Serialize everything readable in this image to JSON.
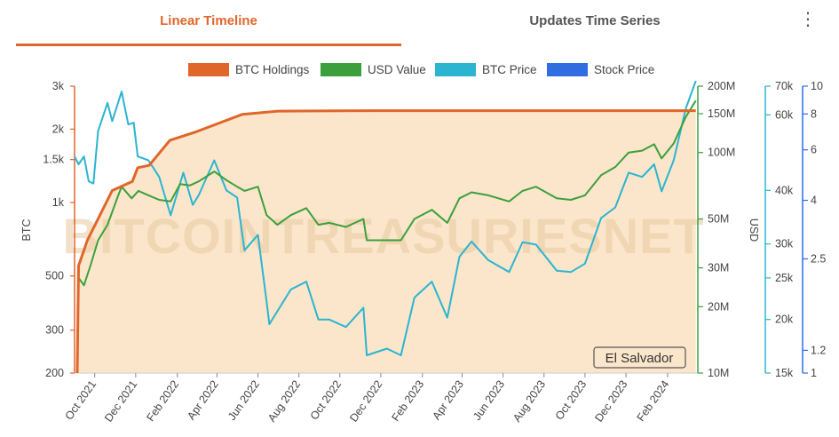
{
  "tabs": [
    {
      "label": "Linear Timeline",
      "active": true
    },
    {
      "label": "Updates Time Series",
      "active": false
    }
  ],
  "menu_icon": "more-vertical-icon",
  "watermark": "BITCOINTREASURIESNET",
  "entity_label": "El Salvador",
  "colors": {
    "btc_holdings": "#e0662a",
    "usd_value": "#3ba03c",
    "btc_price": "#2bb5d0",
    "stock_price": "#2f6de0",
    "fill": "#fbe6cc"
  },
  "chart_data": {
    "type": "line",
    "title": "",
    "legend_position": "top",
    "legend": [
      {
        "name": "BTC Holdings",
        "color": "#e0662a"
      },
      {
        "name": "USD Value",
        "color": "#3ba03c"
      },
      {
        "name": "BTC Price",
        "color": "#2bb5d0"
      },
      {
        "name": "Stock Price",
        "color": "#2f6de0"
      }
    ],
    "x_tick_labels": [
      "Oct 2021",
      "Dec 2021",
      "Feb 2022",
      "Apr 2022",
      "Jun 2022",
      "Aug 2022",
      "Oct 2022",
      "Dec 2022",
      "Feb 2023",
      "Apr 2023",
      "Jun 2023",
      "Aug 2023",
      "Oct 2023",
      "Dec 2023",
      "Feb 2024"
    ],
    "x_range": [
      "2021-09-01",
      "2024-03-17"
    ],
    "axes": {
      "btc": {
        "label": "BTC",
        "scale": "log",
        "range": [
          200,
          3000
        ],
        "ticks": [
          {
            "v": 200,
            "t": "200"
          },
          {
            "v": 300,
            "t": "300"
          },
          {
            "v": 500,
            "t": "500"
          },
          {
            "v": 1000,
            "t": "1k"
          },
          {
            "v": 1500,
            "t": "1.5k"
          },
          {
            "v": 2000,
            "t": "2k"
          },
          {
            "v": 3000,
            "t": "3k"
          }
        ]
      },
      "usd": {
        "label": "USD",
        "scale": "log",
        "range": [
          10000000,
          200000000
        ],
        "ticks": [
          {
            "v": 10000000,
            "t": "10M"
          },
          {
            "v": 20000000,
            "t": "20M"
          },
          {
            "v": 30000000,
            "t": "30M"
          },
          {
            "v": 50000000,
            "t": "50M"
          },
          {
            "v": 100000000,
            "t": "100M"
          },
          {
            "v": 150000000,
            "t": "150M"
          },
          {
            "v": 200000000,
            "t": "200M"
          }
        ]
      },
      "btc_price": {
        "scale": "log",
        "range": [
          15000,
          70000
        ],
        "ticks": [
          {
            "v": 15000,
            "t": "15k"
          },
          {
            "v": 20000,
            "t": "20k"
          },
          {
            "v": 25000,
            "t": "25k"
          },
          {
            "v": 30000,
            "t": "30k"
          },
          {
            "v": 40000,
            "t": "40k"
          },
          {
            "v": 60000,
            "t": "60k"
          },
          {
            "v": 70000,
            "t": "70k"
          }
        ]
      },
      "stock_price": {
        "scale": "log",
        "range": [
          1,
          10
        ],
        "ticks": [
          {
            "v": 1,
            "t": "1"
          },
          {
            "v": 1.2,
            "t": "1.2"
          },
          {
            "v": 2.5,
            "t": "2.5"
          },
          {
            "v": 4,
            "t": "4"
          },
          {
            "v": 6,
            "t": "6"
          },
          {
            "v": 8,
            "t": "8"
          },
          {
            "v": 10,
            "t": "10"
          }
        ]
      }
    },
    "series": [
      {
        "name": "BTC Holdings",
        "axis": "btc",
        "points": [
          [
            "2021-09-05",
            200
          ],
          [
            "2021-09-07",
            550
          ],
          [
            "2021-09-20",
            700
          ],
          [
            "2021-10-27",
            1120
          ],
          [
            "2021-11-26",
            1220
          ],
          [
            "2021-12-04",
            1390
          ],
          [
            "2021-12-21",
            1420
          ],
          [
            "2022-01-21",
            1800
          ],
          [
            "2022-03-01",
            1950
          ],
          [
            "2022-05-09",
            2300
          ],
          [
            "2022-07-01",
            2370
          ],
          [
            "2022-11-17",
            2380
          ],
          [
            "2023-06-01",
            2381
          ],
          [
            "2024-03-14",
            2381
          ]
        ]
      },
      {
        "name": "USD Value",
        "axis": "usd",
        "points": [
          [
            "2021-09-07",
            27000000
          ],
          [
            "2021-09-15",
            25000000
          ],
          [
            "2021-09-25",
            31000000
          ],
          [
            "2021-10-06",
            40000000
          ],
          [
            "2021-10-20",
            47000000
          ],
          [
            "2021-11-05",
            64000000
          ],
          [
            "2021-11-10",
            70000000
          ],
          [
            "2021-11-25",
            62000000
          ],
          [
            "2021-12-05",
            67000000
          ],
          [
            "2021-12-20",
            64000000
          ],
          [
            "2022-01-05",
            61000000
          ],
          [
            "2022-01-22",
            60000000
          ],
          [
            "2022-02-05",
            72000000
          ],
          [
            "2022-02-20",
            71000000
          ],
          [
            "2022-03-05",
            74000000
          ],
          [
            "2022-03-28",
            82000000
          ],
          [
            "2022-04-15",
            75000000
          ],
          [
            "2022-05-01",
            70000000
          ],
          [
            "2022-05-12",
            67000000
          ],
          [
            "2022-06-01",
            70000000
          ],
          [
            "2022-06-14",
            52000000
          ],
          [
            "2022-06-30",
            47000000
          ],
          [
            "2022-07-20",
            52000000
          ],
          [
            "2022-08-12",
            56000000
          ],
          [
            "2022-08-30",
            47000000
          ],
          [
            "2022-09-15",
            48000000
          ],
          [
            "2022-10-10",
            46000000
          ],
          [
            "2022-11-05",
            50000000
          ],
          [
            "2022-11-10",
            40000000
          ],
          [
            "2022-12-10",
            40000000
          ],
          [
            "2022-12-31",
            40000000
          ],
          [
            "2023-01-20",
            50000000
          ],
          [
            "2023-02-15",
            55000000
          ],
          [
            "2023-03-10",
            48000000
          ],
          [
            "2023-03-28",
            62000000
          ],
          [
            "2023-04-15",
            66000000
          ],
          [
            "2023-05-10",
            64000000
          ],
          [
            "2023-06-10",
            60000000
          ],
          [
            "2023-06-30",
            67000000
          ],
          [
            "2023-07-20",
            70000000
          ],
          [
            "2023-08-20",
            62000000
          ],
          [
            "2023-09-10",
            61000000
          ],
          [
            "2023-10-01",
            64000000
          ],
          [
            "2023-10-25",
            79000000
          ],
          [
            "2023-11-15",
            86000000
          ],
          [
            "2023-12-05",
            100000000
          ],
          [
            "2023-12-25",
            102000000
          ],
          [
            "2024-01-12",
            109000000
          ],
          [
            "2024-01-23",
            94000000
          ],
          [
            "2024-02-10",
            110000000
          ],
          [
            "2024-02-28",
            145000000
          ],
          [
            "2024-03-14",
            172000000
          ]
        ]
      },
      {
        "name": "BTC Price",
        "axis": "btc_price",
        "points": [
          [
            "2021-09-01",
            48000
          ],
          [
            "2021-09-07",
            46000
          ],
          [
            "2021-09-15",
            48000
          ],
          [
            "2021-09-22",
            42000
          ],
          [
            "2021-09-29",
            41500
          ],
          [
            "2021-10-06",
            55000
          ],
          [
            "2021-10-20",
            64000
          ],
          [
            "2021-10-27",
            58000
          ],
          [
            "2021-11-10",
            68000
          ],
          [
            "2021-11-20",
            57000
          ],
          [
            "2021-11-28",
            57500
          ],
          [
            "2021-12-04",
            48000
          ],
          [
            "2021-12-20",
            47000
          ],
          [
            "2022-01-05",
            43000
          ],
          [
            "2022-01-22",
            35000
          ],
          [
            "2022-02-10",
            44000
          ],
          [
            "2022-02-24",
            37000
          ],
          [
            "2022-03-05",
            39000
          ],
          [
            "2022-03-28",
            47000
          ],
          [
            "2022-04-15",
            40000
          ],
          [
            "2022-05-01",
            38500
          ],
          [
            "2022-05-12",
            29000
          ],
          [
            "2022-06-01",
            31500
          ],
          [
            "2022-06-14",
            22000
          ],
          [
            "2022-06-18",
            19500
          ],
          [
            "2022-07-20",
            23500
          ],
          [
            "2022-08-12",
            24500
          ],
          [
            "2022-08-30",
            20000
          ],
          [
            "2022-09-15",
            20000
          ],
          [
            "2022-10-10",
            19200
          ],
          [
            "2022-11-05",
            21300
          ],
          [
            "2022-11-10",
            16500
          ],
          [
            "2022-12-10",
            17100
          ],
          [
            "2022-12-31",
            16500
          ],
          [
            "2023-01-20",
            22500
          ],
          [
            "2023-02-15",
            24500
          ],
          [
            "2023-03-10",
            20200
          ],
          [
            "2023-03-28",
            28000
          ],
          [
            "2023-04-15",
            30400
          ],
          [
            "2023-05-10",
            27500
          ],
          [
            "2023-06-10",
            25800
          ],
          [
            "2023-06-30",
            30300
          ],
          [
            "2023-07-20",
            29900
          ],
          [
            "2023-08-20",
            26000
          ],
          [
            "2023-09-10",
            25800
          ],
          [
            "2023-10-01",
            27000
          ],
          [
            "2023-10-25",
            34500
          ],
          [
            "2023-11-15",
            36500
          ],
          [
            "2023-12-05",
            44000
          ],
          [
            "2023-12-25",
            43000
          ],
          [
            "2024-01-12",
            46000
          ],
          [
            "2024-01-23",
            39800
          ],
          [
            "2024-02-10",
            47000
          ],
          [
            "2024-02-28",
            62000
          ],
          [
            "2024-03-14",
            72000
          ]
        ]
      }
    ]
  }
}
